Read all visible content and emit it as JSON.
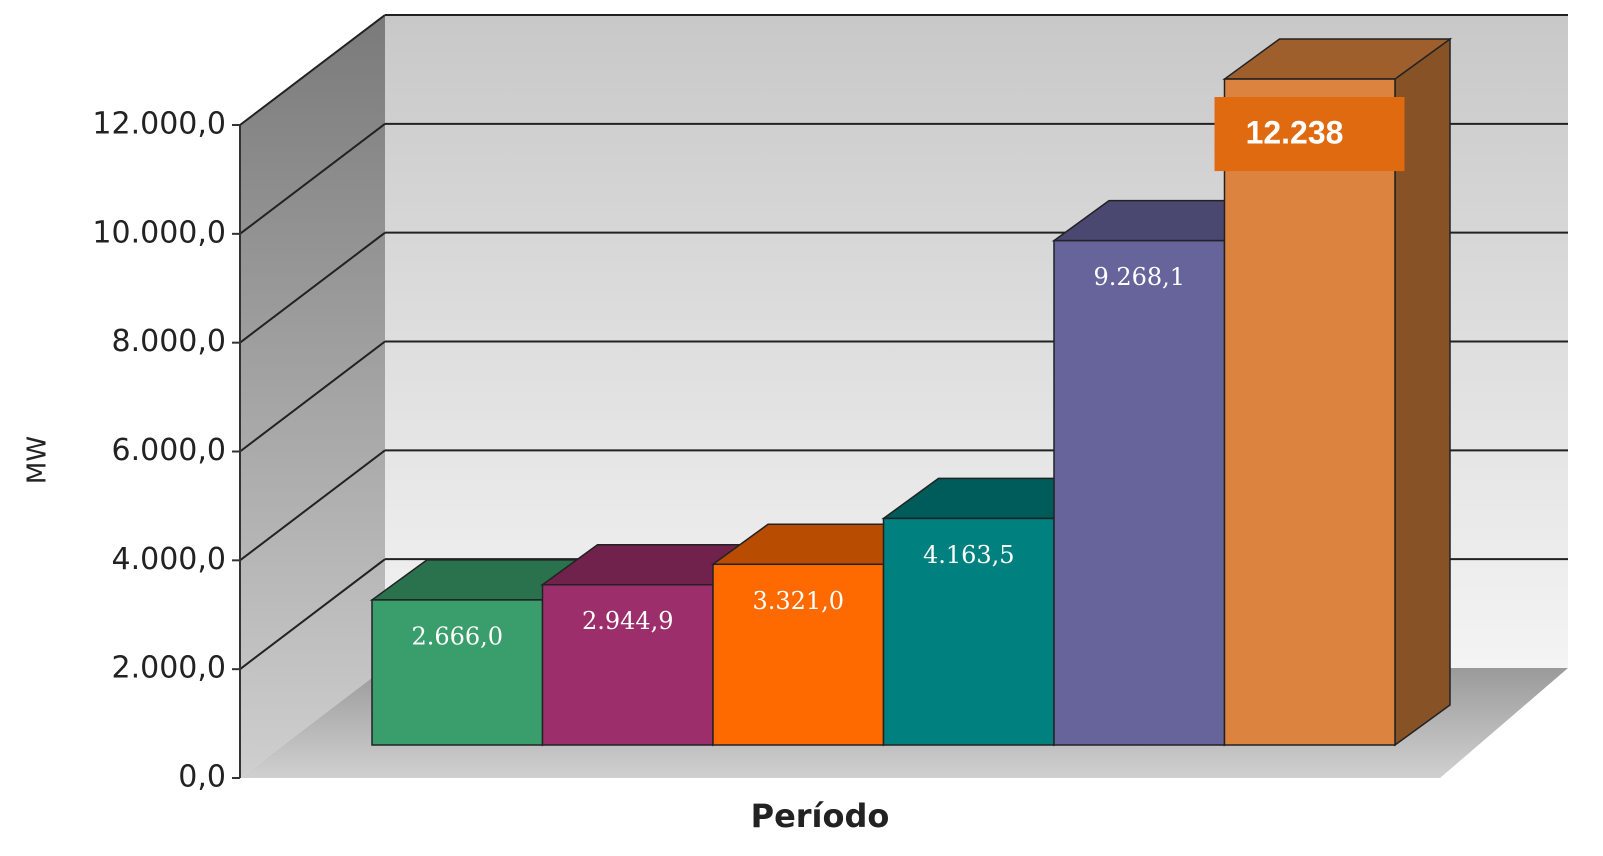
{
  "chart_data": {
    "type": "bar3d",
    "categories": [
      null,
      null,
      null,
      null,
      null,
      null
    ],
    "values": [
      2666.0,
      2944.9,
      3321.0,
      4163.5,
      9268.1,
      12238
    ],
    "value_labels": [
      "2.666,0",
      "2.944,9",
      "3.321,0",
      "4.163,5",
      "9.268,1",
      "12.238"
    ],
    "colors": [
      "#3a9e6c",
      "#9c2f6b",
      "#ff6a00",
      "#00807e",
      "#67649c",
      "#dc843f"
    ],
    "y_label": "MW",
    "x_label": "Período",
    "ylim": [
      0,
      12000
    ],
    "yticks": [
      {
        "value": 0,
        "label": "0,0"
      },
      {
        "value": 2000,
        "label": "2.000,0"
      },
      {
        "value": 4000,
        "label": "4.000,0"
      },
      {
        "value": 6000,
        "label": "6.000,0"
      },
      {
        "value": 8000,
        "label": "8.000,0"
      },
      {
        "value": 10000,
        "label": "10.000,0"
      },
      {
        "value": 12000,
        "label": "12.000,0"
      }
    ],
    "grid": true
  }
}
